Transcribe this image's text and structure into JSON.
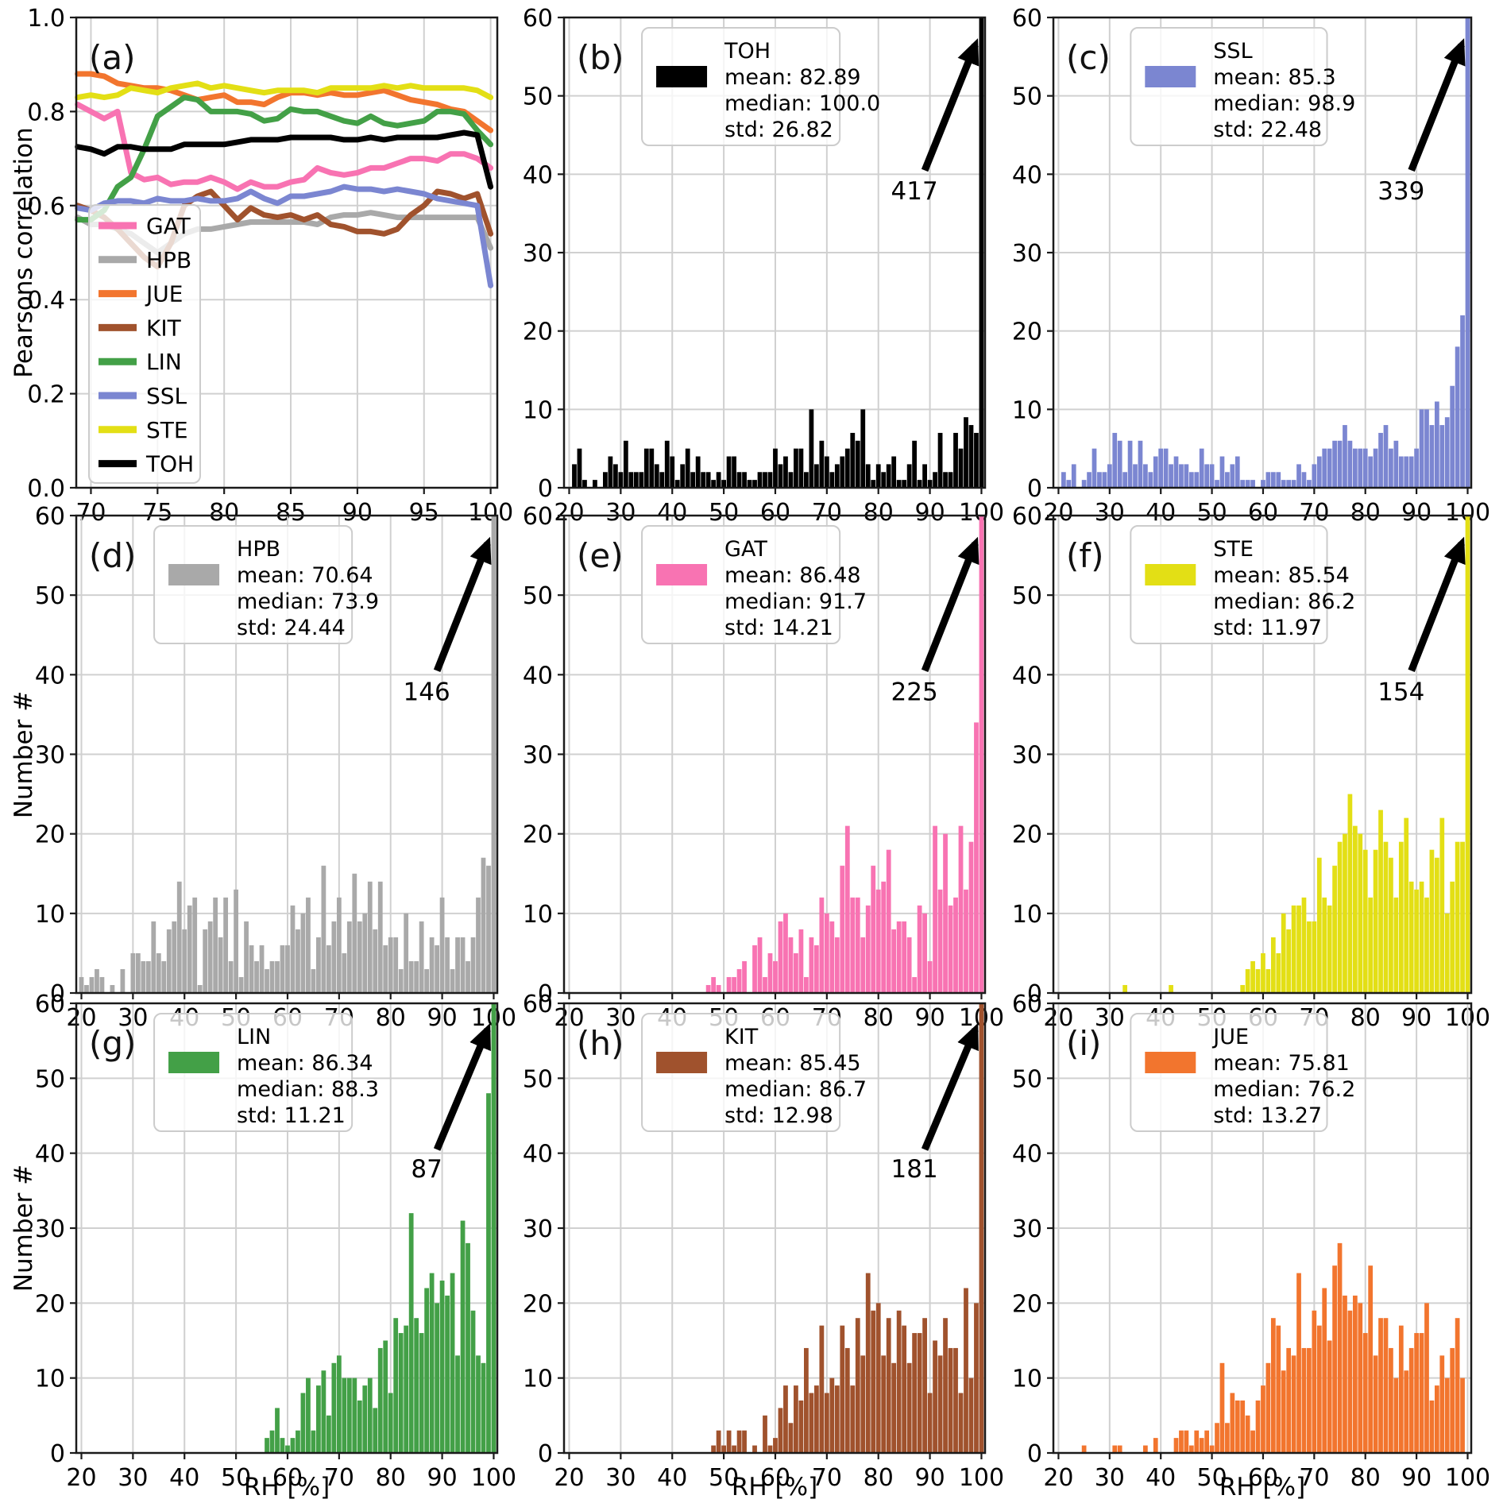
{
  "figure": {
    "xlabel": "RH [%]",
    "ylabel_hist": "Number #",
    "ylabel_corr": "Pearsons correlation",
    "grid_color": "#d0d0d0",
    "spine_color": "#1a1a1a",
    "legend_bg": "rgba(255,255,255,0.78)",
    "legend_border": "#cccccc"
  },
  "chart_data": {
    "hist_defaults": {
      "xlim": [
        19,
        100.7
      ],
      "ylim": [
        0,
        60
      ],
      "xticks": [
        20,
        30,
        40,
        50,
        60,
        70,
        80,
        90,
        100
      ],
      "yticks": [
        0,
        10,
        20,
        30,
        40,
        50,
        60
      ]
    },
    "panels": [
      {
        "id": "a",
        "label": "(a)",
        "type": "line",
        "xlim": [
          68.9,
          100.5
        ],
        "ylim": [
          0,
          1
        ],
        "xticks": [
          70,
          75,
          80,
          85,
          90,
          95,
          100
        ],
        "yticks": [
          0,
          0.2,
          0.4,
          0.6,
          0.8,
          1
        ],
        "ytick_labels": [
          "0.0",
          "0.2",
          "0.4",
          "0.6",
          "0.8",
          "1.0"
        ],
        "x_start": 69,
        "series": [
          {
            "name": "GAT",
            "color": "#f873b2",
            "y": [
              0.815,
              0.8,
              0.785,
              0.8,
              0.67,
              0.655,
              0.66,
              0.645,
              0.65,
              0.65,
              0.66,
              0.65,
              0.635,
              0.65,
              0.64,
              0.64,
              0.65,
              0.655,
              0.68,
              0.67,
              0.665,
              0.67,
              0.68,
              0.68,
              0.69,
              0.7,
              0.7,
              0.695,
              0.71,
              0.71,
              0.7,
              0.68
            ]
          },
          {
            "name": "HPB",
            "color": "#a9a9a9",
            "y": [
              0.575,
              0.56,
              0.56,
              0.55,
              0.54,
              0.52,
              0.5,
              0.52,
              0.54,
              0.55,
              0.55,
              0.555,
              0.56,
              0.565,
              0.565,
              0.565,
              0.565,
              0.565,
              0.56,
              0.575,
              0.58,
              0.58,
              0.585,
              0.58,
              0.575,
              0.575,
              0.575,
              0.575,
              0.575,
              0.575,
              0.575,
              0.51
            ]
          },
          {
            "name": "JUE",
            "color": "#f2752e",
            "y": [
              0.88,
              0.88,
              0.875,
              0.86,
              0.855,
              0.85,
              0.85,
              0.845,
              0.835,
              0.825,
              0.83,
              0.835,
              0.82,
              0.82,
              0.815,
              0.83,
              0.84,
              0.84,
              0.835,
              0.84,
              0.835,
              0.835,
              0.84,
              0.845,
              0.835,
              0.825,
              0.82,
              0.815,
              0.805,
              0.8,
              0.78,
              0.76
            ]
          },
          {
            "name": "KIT",
            "color": "#a0522d",
            "y": [
              0.6,
              0.59,
              0.575,
              0.55,
              0.52,
              0.49,
              0.47,
              0.52,
              0.6,
              0.62,
              0.63,
              0.6,
              0.57,
              0.595,
              0.58,
              0.575,
              0.58,
              0.57,
              0.58,
              0.56,
              0.555,
              0.545,
              0.545,
              0.54,
              0.55,
              0.58,
              0.6,
              0.63,
              0.625,
              0.615,
              0.625,
              0.54
            ]
          },
          {
            "name": "LIN",
            "color": "#43a047",
            "y": [
              0.57,
              0.57,
              0.59,
              0.64,
              0.66,
              0.72,
              0.79,
              0.81,
              0.83,
              0.825,
              0.8,
              0.8,
              0.8,
              0.795,
              0.78,
              0.785,
              0.805,
              0.8,
              0.8,
              0.79,
              0.78,
              0.775,
              0.79,
              0.775,
              0.77,
              0.775,
              0.78,
              0.8,
              0.8,
              0.795,
              0.76,
              0.73
            ]
          },
          {
            "name": "SSL",
            "color": "#7b86d1",
            "y": [
              0.595,
              0.59,
              0.605,
              0.61,
              0.61,
              0.605,
              0.615,
              0.61,
              0.61,
              0.615,
              0.61,
              0.61,
              0.615,
              0.63,
              0.615,
              0.605,
              0.62,
              0.62,
              0.625,
              0.63,
              0.64,
              0.635,
              0.635,
              0.63,
              0.635,
              0.63,
              0.625,
              0.615,
              0.61,
              0.605,
              0.6,
              0.43
            ]
          },
          {
            "name": "STE",
            "color": "#e3df15",
            "y": [
              0.83,
              0.835,
              0.83,
              0.835,
              0.85,
              0.845,
              0.84,
              0.85,
              0.855,
              0.86,
              0.85,
              0.855,
              0.85,
              0.845,
              0.84,
              0.845,
              0.845,
              0.845,
              0.84,
              0.85,
              0.85,
              0.85,
              0.85,
              0.855,
              0.85,
              0.855,
              0.85,
              0.85,
              0.85,
              0.85,
              0.845,
              0.83
            ]
          },
          {
            "name": "TOH",
            "color": "#000000",
            "y": [
              0.725,
              0.72,
              0.71,
              0.725,
              0.725,
              0.72,
              0.72,
              0.72,
              0.73,
              0.73,
              0.73,
              0.73,
              0.735,
              0.74,
              0.74,
              0.74,
              0.745,
              0.745,
              0.745,
              0.745,
              0.74,
              0.74,
              0.745,
              0.74,
              0.745,
              0.745,
              0.745,
              0.745,
              0.75,
              0.755,
              0.75,
              0.64
            ]
          }
        ],
        "legend_order": [
          "GAT",
          "HPB",
          "JUE",
          "KIT",
          "LIN",
          "SSL",
          "STE",
          "TOH"
        ]
      },
      {
        "id": "b",
        "label": "(b)",
        "type": "hist",
        "station": "TOH",
        "color": "#000000",
        "legend_lines": [
          "TOH",
          "mean: 82.89",
          "median: 100.0",
          "std: 26.82"
        ],
        "annotation": {
          "text": "417"
        },
        "bin_start": 21,
        "counts": [
          3,
          5,
          1,
          0,
          1,
          0,
          2,
          4,
          3,
          2,
          6,
          2,
          2,
          2,
          5,
          5,
          3,
          2,
          6,
          4,
          1,
          3,
          5,
          2,
          4,
          2,
          2,
          1,
          2,
          1,
          4,
          4,
          2,
          2,
          1,
          1,
          2,
          2,
          2,
          5,
          3,
          4,
          2,
          5,
          5,
          2,
          10,
          3,
          6,
          4,
          2,
          3,
          4,
          5,
          7,
          6,
          10,
          3,
          1,
          3,
          2,
          3,
          4,
          1,
          1,
          3,
          6,
          1,
          3,
          1,
          2,
          7,
          2,
          2,
          7,
          5,
          9,
          8,
          7,
          417
        ]
      },
      {
        "id": "c",
        "label": "(c)",
        "type": "hist",
        "station": "SSL",
        "color": "#7b86d1",
        "legend_lines": [
          "SSL",
          "mean: 85.3",
          "median: 98.9",
          "std: 22.48"
        ],
        "annotation": {
          "text": "339"
        },
        "bin_start": 21,
        "counts": [
          2,
          1,
          3,
          0,
          1,
          2,
          5,
          2,
          2,
          3,
          7,
          6,
          2,
          6,
          3,
          6,
          3,
          2,
          4,
          5,
          5,
          3,
          4,
          3,
          3,
          2,
          2,
          5,
          3,
          3,
          1,
          4,
          2,
          3,
          4,
          1,
          1,
          1,
          0,
          1,
          2,
          2,
          2,
          1,
          1,
          1,
          3,
          2,
          1,
          3,
          4,
          5,
          5,
          6,
          6,
          8,
          6,
          5,
          5,
          5,
          4,
          5,
          7,
          8,
          5,
          6,
          4,
          4,
          4,
          5,
          10,
          10,
          8,
          11,
          8,
          9,
          13,
          18,
          22,
          339
        ]
      },
      {
        "id": "d",
        "label": "(d)",
        "type": "hist",
        "station": "HPB",
        "color": "#a9a9a9",
        "legend_lines": [
          "HPB",
          "mean: 70.64",
          "median: 73.9",
          "std: 24.44"
        ],
        "annotation": {
          "text": "146"
        },
        "bin_start": 20,
        "counts": [
          2,
          1,
          2,
          3,
          2,
          0,
          1,
          0,
          3,
          0,
          5,
          5,
          4,
          4,
          9,
          5,
          4,
          8,
          9,
          14,
          8,
          11,
          12,
          1,
          8,
          9,
          12,
          7,
          12,
          4,
          13,
          2,
          9,
          6,
          4,
          6,
          3,
          4,
          4,
          6,
          6,
          11,
          8,
          10,
          12,
          3,
          7,
          16,
          6,
          9,
          12,
          5,
          9,
          15,
          9,
          10,
          14,
          8,
          14,
          6,
          7,
          7,
          3,
          10,
          4,
          4,
          9,
          3,
          7,
          6,
          12,
          7,
          3,
          7,
          7,
          4,
          7,
          12,
          17,
          16,
          146
        ]
      },
      {
        "id": "e",
        "label": "(e)",
        "type": "hist",
        "station": "GAT",
        "color": "#f873b2",
        "legend_lines": [
          "GAT",
          "mean: 86.48",
          "median: 91.7",
          "std: 14.21"
        ],
        "annotation": {
          "text": "225"
        },
        "bin_start": 47,
        "counts": [
          1,
          2,
          1,
          0,
          2,
          2,
          3,
          4,
          0,
          6,
          7,
          2,
          5,
          4,
          9,
          10,
          7,
          5,
          8,
          2,
          7,
          6,
          12,
          10,
          9,
          7,
          16,
          21,
          12,
          12,
          7,
          11,
          16,
          13,
          14,
          18,
          8,
          9,
          9,
          7,
          2,
          11,
          10,
          4,
          21,
          13,
          20,
          11,
          12,
          21,
          13,
          19,
          34,
          225
        ]
      },
      {
        "id": "f",
        "label": "(f)",
        "type": "hist",
        "station": "STE",
        "color": "#e3df15",
        "legend_lines": [
          "STE",
          "mean: 85.54",
          "median: 86.2",
          "std: 11.97"
        ],
        "annotation": {
          "text": "154"
        },
        "bin_start": 33,
        "counts": [
          1,
          0,
          0,
          0,
          0,
          0,
          0,
          0,
          0,
          1,
          0,
          0,
          0,
          0,
          0,
          0,
          0,
          0,
          0,
          0,
          0,
          0,
          0,
          1,
          3,
          4,
          3,
          5,
          3,
          7,
          5,
          10,
          8,
          11,
          11,
          12,
          9,
          9,
          17,
          12,
          11,
          16,
          19,
          20,
          25,
          21,
          20,
          18,
          12,
          18,
          23,
          19,
          17,
          12,
          19,
          22,
          14,
          13,
          14,
          12,
          18,
          17,
          22,
          10,
          14,
          19,
          19,
          154
        ]
      },
      {
        "id": "g",
        "label": "(g)",
        "type": "hist",
        "station": "LIN",
        "color": "#43a047",
        "legend_lines": [
          "LIN",
          "mean: 86.34",
          "median: 88.3",
          "std: 11.21"
        ],
        "annotation": {
          "text": "87"
        },
        "bin_start": 56,
        "counts": [
          2,
          3,
          6,
          2,
          1,
          2,
          3,
          8,
          10,
          3,
          9,
          11,
          5,
          12,
          13,
          10,
          10,
          10,
          7,
          9,
          10,
          6,
          14,
          15,
          8,
          18,
          16,
          17,
          32,
          18,
          16,
          22,
          24,
          20,
          23,
          21,
          24,
          13,
          31,
          28,
          19,
          13,
          12,
          48,
          87
        ]
      },
      {
        "id": "h",
        "label": "(h)",
        "type": "hist",
        "station": "KIT",
        "color": "#a0522d",
        "legend_lines": [
          "KIT",
          "mean: 85.45",
          "median: 86.7",
          "std: 12.98"
        ],
        "annotation": {
          "text": "181"
        },
        "bin_start": 48,
        "counts": [
          1,
          3,
          1,
          3,
          1,
          3,
          3,
          0,
          1,
          0,
          5,
          1,
          2,
          6,
          9,
          4,
          9,
          7,
          14,
          8,
          9,
          17,
          8,
          10,
          9,
          17,
          14,
          9,
          18,
          13,
          24,
          19,
          20,
          13,
          18,
          12,
          19,
          17,
          12,
          16,
          16,
          18,
          8,
          15,
          13,
          18,
          14,
          14,
          8,
          22,
          10,
          20,
          181
        ]
      },
      {
        "id": "i",
        "label": "(i)",
        "type": "hist",
        "station": "JUE",
        "color": "#f2752e",
        "legend_lines": [
          "JUE",
          "mean: 75.81",
          "median: 76.2",
          "std: 13.27"
        ],
        "annotation": null,
        "bin_start": 25,
        "counts": [
          1,
          0,
          0,
          0,
          0,
          0,
          1,
          1,
          0,
          0,
          0,
          0,
          1,
          0,
          2,
          0,
          0,
          0,
          2,
          3,
          3,
          1,
          3,
          2,
          3,
          1,
          4,
          12,
          4,
          8,
          7,
          7,
          5,
          3,
          7,
          9,
          12,
          18,
          17,
          11,
          14,
          13,
          24,
          14,
          14,
          19,
          17,
          22,
          15,
          25,
          28,
          21,
          19,
          21,
          20,
          16,
          25,
          13,
          18,
          18,
          14,
          10,
          17,
          11,
          14,
          16,
          16,
          20,
          7,
          9,
          13,
          10,
          14,
          18,
          10,
          0
        ]
      }
    ]
  }
}
